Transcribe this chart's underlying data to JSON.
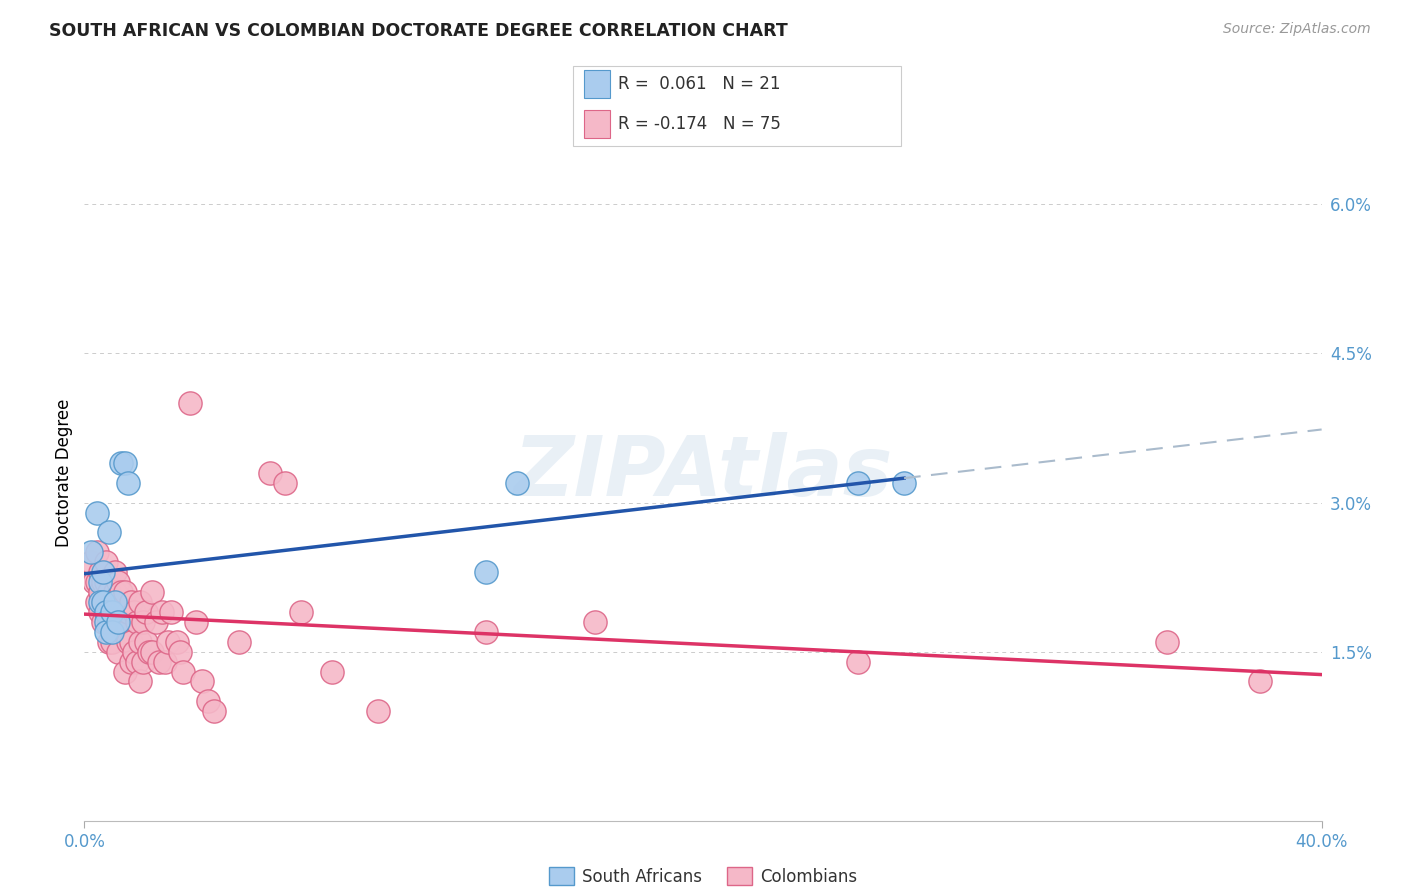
{
  "title": "SOUTH AFRICAN VS COLOMBIAN DOCTORATE DEGREE CORRELATION CHART",
  "source": "Source: ZipAtlas.com",
  "ylabel": "Doctorate Degree",
  "xlim": [
    0.0,
    0.4
  ],
  "ylim": [
    -0.002,
    0.068
  ],
  "yticks": [
    0.015,
    0.03,
    0.045,
    0.06
  ],
  "ytick_labels": [
    "1.5%",
    "3.0%",
    "4.5%",
    "6.0%"
  ],
  "xtick_left_label": "0.0%",
  "xtick_right_label": "40.0%",
  "south_african_color": "#aaccee",
  "colombian_color": "#f5b8c8",
  "south_african_edge": "#5599cc",
  "colombian_edge": "#dd6688",
  "trend_sa_color": "#2255aa",
  "trend_col_color": "#dd3366",
  "trend_sa_dash_color": "#aabbcc",
  "R_sa": 0.061,
  "N_sa": 21,
  "R_col": -0.174,
  "N_col": 75,
  "background_color": "#ffffff",
  "grid_color": "#cccccc",
  "south_africans_x": [
    0.002,
    0.004,
    0.005,
    0.005,
    0.006,
    0.006,
    0.007,
    0.007,
    0.007,
    0.008,
    0.009,
    0.009,
    0.01,
    0.011,
    0.012,
    0.013,
    0.014,
    0.13,
    0.14,
    0.25,
    0.265
  ],
  "south_africans_y": [
    0.025,
    0.029,
    0.022,
    0.02,
    0.023,
    0.02,
    0.019,
    0.018,
    0.017,
    0.027,
    0.019,
    0.017,
    0.02,
    0.018,
    0.034,
    0.034,
    0.032,
    0.023,
    0.032,
    0.032,
    0.032
  ],
  "colombians_x": [
    0.002,
    0.003,
    0.004,
    0.004,
    0.004,
    0.005,
    0.005,
    0.005,
    0.006,
    0.006,
    0.006,
    0.007,
    0.007,
    0.007,
    0.008,
    0.008,
    0.008,
    0.009,
    0.009,
    0.009,
    0.01,
    0.01,
    0.01,
    0.011,
    0.011,
    0.011,
    0.012,
    0.012,
    0.013,
    0.013,
    0.013,
    0.014,
    0.014,
    0.015,
    0.015,
    0.015,
    0.016,
    0.016,
    0.017,
    0.017,
    0.018,
    0.018,
    0.018,
    0.019,
    0.019,
    0.02,
    0.02,
    0.021,
    0.022,
    0.022,
    0.023,
    0.024,
    0.025,
    0.026,
    0.027,
    0.028,
    0.03,
    0.031,
    0.032,
    0.034,
    0.036,
    0.038,
    0.04,
    0.042,
    0.05,
    0.06,
    0.065,
    0.07,
    0.08,
    0.095,
    0.13,
    0.165,
    0.25,
    0.35,
    0.38
  ],
  "colombians_y": [
    0.024,
    0.022,
    0.025,
    0.022,
    0.02,
    0.023,
    0.021,
    0.019,
    0.022,
    0.02,
    0.018,
    0.024,
    0.022,
    0.019,
    0.021,
    0.018,
    0.016,
    0.02,
    0.018,
    0.016,
    0.023,
    0.021,
    0.018,
    0.022,
    0.019,
    0.015,
    0.021,
    0.018,
    0.021,
    0.017,
    0.013,
    0.019,
    0.016,
    0.02,
    0.016,
    0.014,
    0.019,
    0.015,
    0.018,
    0.014,
    0.02,
    0.016,
    0.012,
    0.018,
    0.014,
    0.019,
    0.016,
    0.015,
    0.021,
    0.015,
    0.018,
    0.014,
    0.019,
    0.014,
    0.016,
    0.019,
    0.016,
    0.015,
    0.013,
    0.04,
    0.018,
    0.012,
    0.01,
    0.009,
    0.016,
    0.033,
    0.032,
    0.019,
    0.013,
    0.009,
    0.017,
    0.018,
    0.014,
    0.016,
    0.012
  ]
}
